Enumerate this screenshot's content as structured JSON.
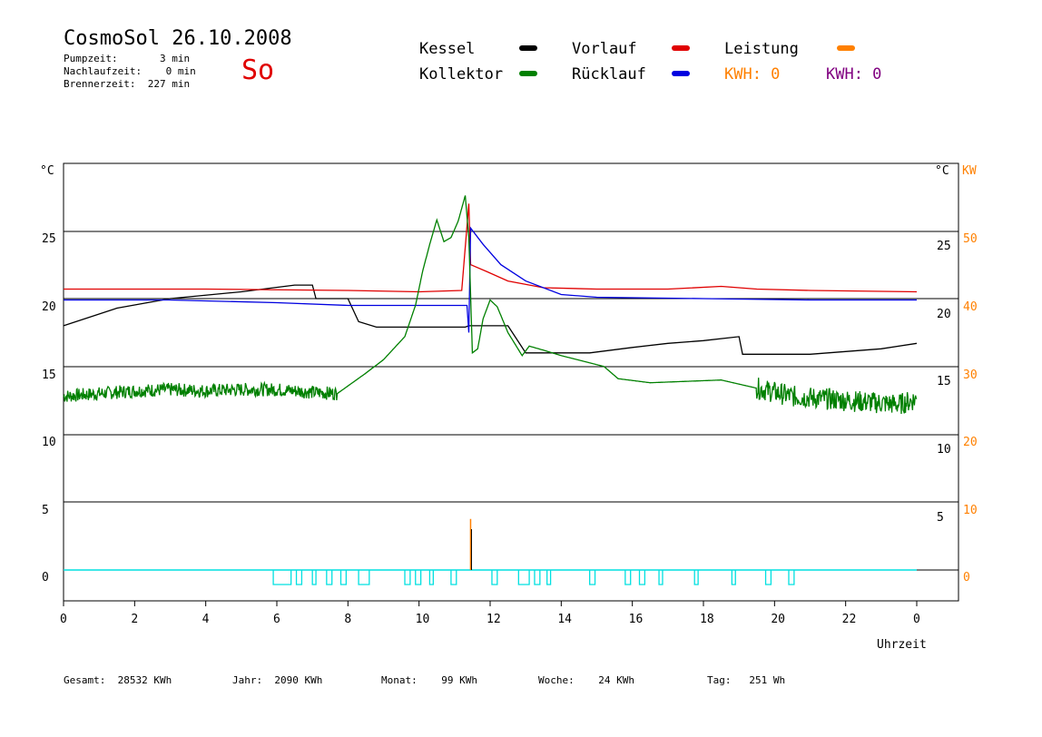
{
  "header": {
    "title": "CosmoSol 26.10.2008",
    "day": "So",
    "pumpzeit": "Pumpzeit:       3 min",
    "nachlaufzeit": "Nachlaufzeit:    0 min",
    "brennerzeit": "Brennerzeit:  227 min"
  },
  "legend": {
    "kessel": "Kessel",
    "kollektor": "Kollektor",
    "vorlauf": "Vorlauf",
    "ruecklauf": "Rücklauf",
    "leistung": "Leistung",
    "kwh_orange": "KWH: 0",
    "kwh_purple": "KWH: 0",
    "colors": {
      "kessel": "#000000",
      "kollektor": "#008000",
      "vorlauf": "#e00000",
      "ruecklauf": "#0000e0",
      "leistung": "#ff8000",
      "kwh_orange": "#ff8000",
      "kwh_purple": "#800080",
      "pump": "#00e0e0"
    }
  },
  "footer": {
    "gesamt": "Gesamt:  28532 KWh",
    "jahr": "Jahr:  2090 KWh",
    "monat": "Monat:    99 KWh",
    "woche": "Woche:    24 KWh",
    "tag": "Tag:   251 Wh"
  },
  "chart_data": {
    "type": "line",
    "xlabel": "Uhrzeit",
    "left_axis_unit": "°C",
    "right_axis_unit": "°C",
    "right_axis2_unit": "KW",
    "x_ticks": [
      "0",
      "2",
      "4",
      "6",
      "8",
      "10",
      "12",
      "14",
      "16",
      "18",
      "20",
      "22",
      "0"
    ],
    "left_ticks": [
      "0",
      "5",
      "10",
      "15",
      "20",
      "25"
    ],
    "right_ticks": [
      "5",
      "10",
      "15",
      "20",
      "25"
    ],
    "right_kw_ticks": [
      "0",
      "10",
      "20",
      "30",
      "40",
      "50"
    ],
    "xlim": [
      0,
      24
    ],
    "series": [
      {
        "name": "Kessel",
        "color": "#000000",
        "points": [
          [
            0,
            18.0
          ],
          [
            1.5,
            19.3
          ],
          [
            3,
            20.0
          ],
          [
            5,
            20.5
          ],
          [
            6.5,
            21.0
          ],
          [
            7.0,
            21.0
          ],
          [
            7.1,
            20.0
          ],
          [
            8.0,
            20.0
          ],
          [
            8.3,
            18.3
          ],
          [
            8.8,
            17.9
          ],
          [
            11.3,
            17.9
          ],
          [
            11.4,
            18.0
          ],
          [
            12.5,
            18.0
          ],
          [
            13,
            16.0
          ],
          [
            14.8,
            16.0
          ],
          [
            16,
            16.4
          ],
          [
            17,
            16.7
          ],
          [
            18,
            16.9
          ],
          [
            19.0,
            17.2
          ],
          [
            19.1,
            15.9
          ],
          [
            21,
            15.9
          ],
          [
            23,
            16.3
          ],
          [
            24,
            16.7
          ]
        ]
      },
      {
        "name": "Vorlauf",
        "color": "#e00000",
        "points": [
          [
            0,
            20.7
          ],
          [
            4,
            20.7
          ],
          [
            8,
            20.6
          ],
          [
            10,
            20.5
          ],
          [
            11.2,
            20.6
          ],
          [
            11.4,
            27.0
          ],
          [
            11.45,
            22.5
          ],
          [
            11.9,
            22.0
          ],
          [
            12.5,
            21.3
          ],
          [
            13.5,
            20.8
          ],
          [
            15,
            20.7
          ],
          [
            17,
            20.7
          ],
          [
            18.5,
            20.9
          ],
          [
            19.5,
            20.7
          ],
          [
            21,
            20.6
          ],
          [
            24,
            20.5
          ]
        ]
      },
      {
        "name": "Rücklauf",
        "color": "#0000e0",
        "points": [
          [
            0,
            19.9
          ],
          [
            3,
            19.9
          ],
          [
            6,
            19.7
          ],
          [
            8,
            19.5
          ],
          [
            10,
            19.5
          ],
          [
            11.35,
            19.5
          ],
          [
            11.4,
            17.5
          ],
          [
            11.45,
            25.2
          ],
          [
            11.8,
            24.0
          ],
          [
            12.3,
            22.5
          ],
          [
            13.0,
            21.3
          ],
          [
            14,
            20.3
          ],
          [
            15,
            20.1
          ],
          [
            18,
            20.0
          ],
          [
            21,
            19.9
          ],
          [
            24,
            19.9
          ]
        ]
      },
      {
        "name": "Kollektor",
        "color": "#008000",
        "points": [
          [
            0,
            12.8
          ],
          [
            1,
            13.0
          ],
          [
            2,
            13.2
          ],
          [
            3,
            13.3
          ],
          [
            4,
            13.2
          ],
          [
            5,
            13.3
          ],
          [
            6,
            13.3
          ],
          [
            7,
            13.1
          ],
          [
            7.7,
            13.0
          ],
          [
            8.5,
            14.5
          ],
          [
            9.0,
            15.5
          ],
          [
            9.6,
            17.2
          ],
          [
            9.9,
            19.5
          ],
          [
            10.1,
            22.0
          ],
          [
            10.3,
            24.0
          ],
          [
            10.5,
            25.8
          ],
          [
            10.7,
            24.2
          ],
          [
            10.9,
            24.5
          ],
          [
            11.1,
            25.7
          ],
          [
            11.3,
            27.6
          ],
          [
            11.4,
            24.5
          ],
          [
            11.5,
            16.0
          ],
          [
            11.65,
            16.3
          ],
          [
            11.8,
            18.5
          ],
          [
            12.0,
            19.9
          ],
          [
            12.2,
            19.4
          ],
          [
            12.5,
            17.5
          ],
          [
            12.9,
            15.8
          ],
          [
            13.1,
            16.5
          ],
          [
            13.5,
            16.2
          ],
          [
            14.0,
            15.8
          ],
          [
            14.6,
            15.4
          ],
          [
            15.2,
            15.0
          ],
          [
            15.6,
            14.1
          ],
          [
            16.5,
            13.8
          ],
          [
            17.5,
            13.9
          ],
          [
            18.5,
            14.0
          ],
          [
            19.5,
            13.4
          ],
          [
            20.5,
            12.8
          ],
          [
            21.5,
            12.6
          ],
          [
            22.5,
            12.4
          ],
          [
            23.5,
            12.2
          ],
          [
            24,
            12.6
          ]
        ]
      }
    ],
    "pump_pulses": [
      [
        5.9,
        6.4
      ],
      [
        6.55,
        6.7
      ],
      [
        7.0,
        7.1
      ],
      [
        7.4,
        7.55
      ],
      [
        7.8,
        7.95
      ],
      [
        8.3,
        8.6
      ],
      [
        9.6,
        9.75
      ],
      [
        9.9,
        10.05
      ],
      [
        10.3,
        10.4
      ],
      [
        10.9,
        11.05
      ],
      [
        12.05,
        12.2
      ],
      [
        12.8,
        13.1
      ],
      [
        13.25,
        13.4
      ],
      [
        13.6,
        13.7
      ],
      [
        14.8,
        14.95
      ],
      [
        15.8,
        15.95
      ],
      [
        16.2,
        16.35
      ],
      [
        16.75,
        16.85
      ],
      [
        17.75,
        17.85
      ],
      [
        18.8,
        18.9
      ],
      [
        19.75,
        19.9
      ],
      [
        20.4,
        20.55
      ]
    ],
    "leistung_peak": {
      "x": 11.45,
      "kw": 7.5
    },
    "grid": true
  }
}
